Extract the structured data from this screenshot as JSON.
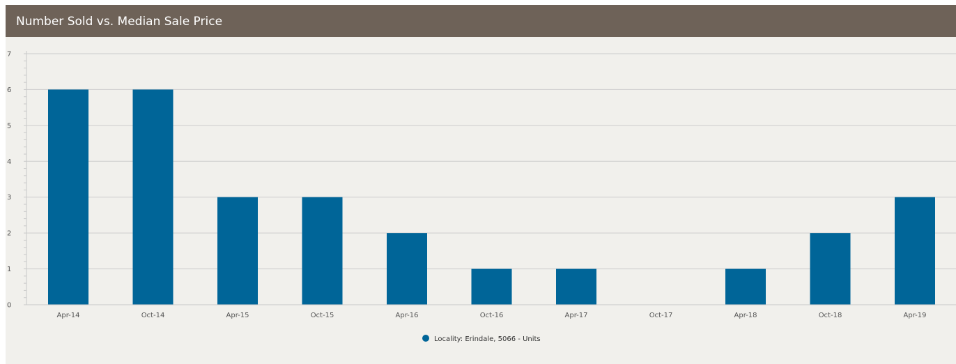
{
  "header": {
    "title": "Number Sold vs. Median Sale Price"
  },
  "colors": {
    "header_bg": "#6e6258",
    "panel_bg": "#f1f0ec",
    "bar": "#006598",
    "grid": "#cccccc"
  },
  "chart_data": {
    "type": "bar",
    "title": "",
    "xlabel": "",
    "ylabel": "",
    "categories": [
      "Apr-14",
      "Oct-14",
      "Apr-15",
      "Oct-15",
      "Apr-16",
      "Oct-16",
      "Apr-17",
      "Oct-17",
      "Apr-18",
      "Oct-18",
      "Apr-19"
    ],
    "series": [
      {
        "name": "Locality: Erindale, 5066 - Units",
        "values": [
          6,
          6,
          3,
          3,
          2,
          1,
          1,
          0,
          1,
          2,
          3
        ]
      }
    ],
    "ylim": [
      0,
      7
    ],
    "yticks": [
      0,
      1,
      2,
      3,
      4,
      5,
      6,
      7
    ],
    "grid": true,
    "legend": "bottom-center"
  }
}
